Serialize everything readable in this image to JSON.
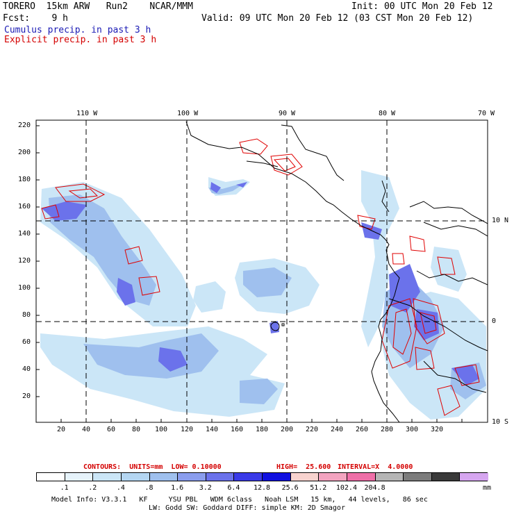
{
  "header": {
    "model": "TORERO  15km ARW   Run2    NCAR/MMM",
    "init": "Init: 00 UTC Mon 20 Feb 12",
    "fcst": "Fcst:    9 h",
    "valid": "Valid: 09 UTC Mon 20 Feb 12 (03 CST Mon 20 Feb 12)",
    "cumulus": "Cumulus precip. in past 3 h",
    "explicit": "Explicit precip. in past 3 h"
  },
  "axes": {
    "lon_labels": [
      "110 W",
      "100 W",
      "90 W",
      "80 W",
      "70 W"
    ],
    "lat_labels": [
      "10 N",
      "0",
      "10 S"
    ],
    "x_ticks": [
      "20",
      "40",
      "60",
      "80",
      "100",
      "120",
      "140",
      "160",
      "180",
      "200",
      "220",
      "240",
      "260",
      "280",
      "300",
      "320"
    ],
    "y_ticks": [
      "220",
      "200",
      "180",
      "160",
      "140",
      "120",
      "100",
      "80",
      "60",
      "40",
      "20"
    ]
  },
  "contours": {
    "units": "CONTOURS:  UNITS=mm  LOW= 0.10000",
    "high": "HIGH=  25.600",
    "interval": "INTERVAL=X  4.0000"
  },
  "colorbar": {
    "labels": [
      ".1",
      ".2",
      ".4",
      ".8",
      "1.6",
      "3.2",
      "6.4",
      "12.8",
      "25.6",
      "51.2",
      "102.4",
      "204.8"
    ],
    "unit": "mm",
    "colors": [
      "#ffffff",
      "#e6f3fb",
      "#cbe6f7",
      "#b4d6f2",
      "#9fc0ee",
      "#8a9ded",
      "#6b72eb",
      "#3a3ae8",
      "#1010e0",
      "#f8d3cf",
      "#f3a4c0",
      "#ef6fa8",
      "#b5b5b5",
      "#7c7c7c",
      "#3a3a3a",
      "#d6a6f0"
    ]
  },
  "footer": {
    "line1": "Model Info: V3.3.1   KF     YSU PBL   WDM 6class   Noah LSM   15 km,   44 levels,   86 sec",
    "line2": "LW: Godd SW: Goddard DIFF: simple KM: 2D Smagor"
  }
}
